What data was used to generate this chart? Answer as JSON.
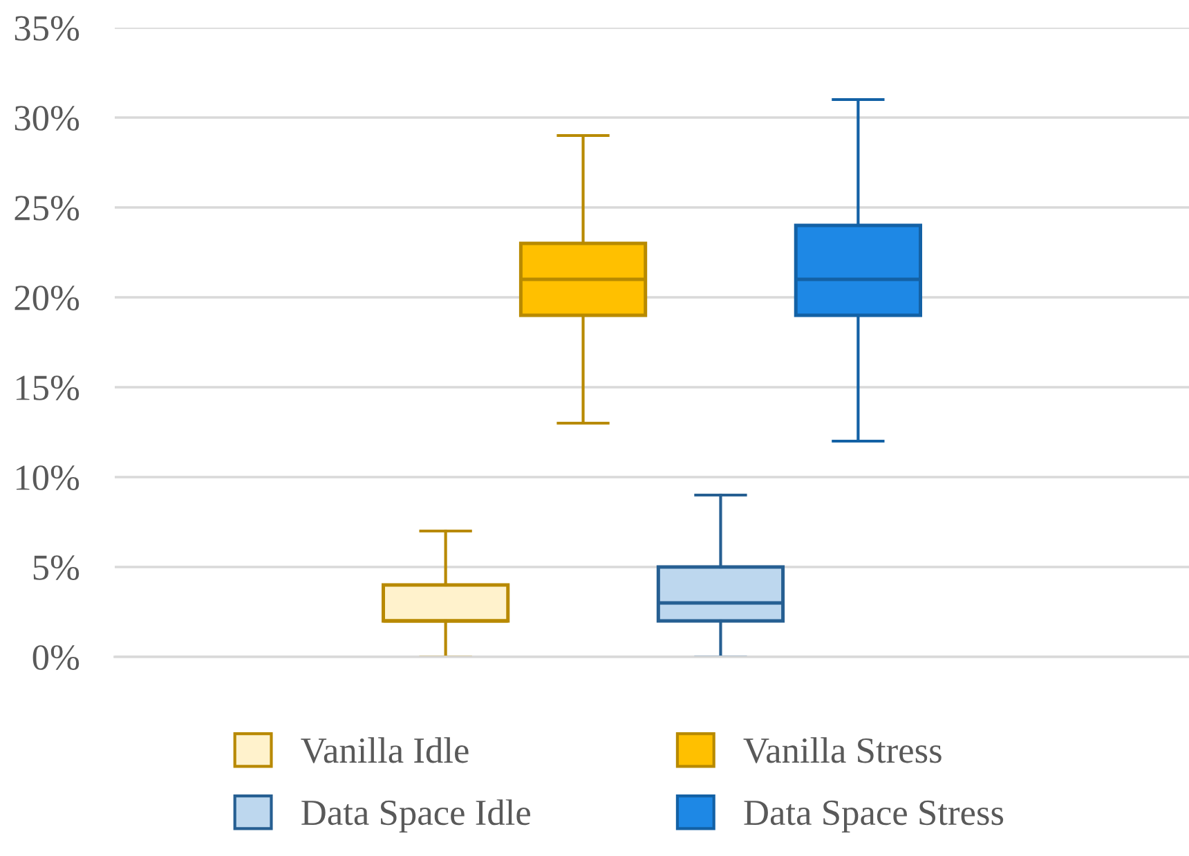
{
  "chart_data": {
    "type": "box",
    "categories": [
      null
    ],
    "series": [
      {
        "name": "Vanilla Idle",
        "color": "#fff2cc",
        "boxes": [
          {
            "low": 0,
            "q1": 2,
            "median": 2,
            "q3": 4,
            "high": 7
          }
        ]
      },
      {
        "name": "Vanilla Stress",
        "color": "#ffc000",
        "boxes": [
          {
            "low": 13,
            "q1": 19,
            "median": 21,
            "q3": 23,
            "high": 29
          }
        ]
      },
      {
        "name": "Data Space Idle",
        "color": "#bdd7ee",
        "boxes": [
          {
            "low": 0,
            "q1": 2,
            "median": 3,
            "q3": 5,
            "high": 9
          }
        ]
      },
      {
        "name": "Data Space Stress",
        "color": "#1e88e5",
        "boxes": [
          {
            "low": 12,
            "q1": 19,
            "median": 21,
            "q3": 24,
            "high": 31
          }
        ]
      }
    ],
    "ylim": [
      0,
      35
    ],
    "yticks": [
      {
        "value": 0,
        "label": "0%"
      },
      {
        "value": 5,
        "label": "5%"
      },
      {
        "value": 10,
        "label": "10%"
      },
      {
        "value": 15,
        "label": "15%"
      },
      {
        "value": 20,
        "label": "20%"
      },
      {
        "value": 25,
        "label": "25%"
      },
      {
        "value": 30,
        "label": "30%"
      },
      {
        "value": 35,
        "label": "35%"
      }
    ],
    "grid": "y",
    "legend": "bottom"
  }
}
